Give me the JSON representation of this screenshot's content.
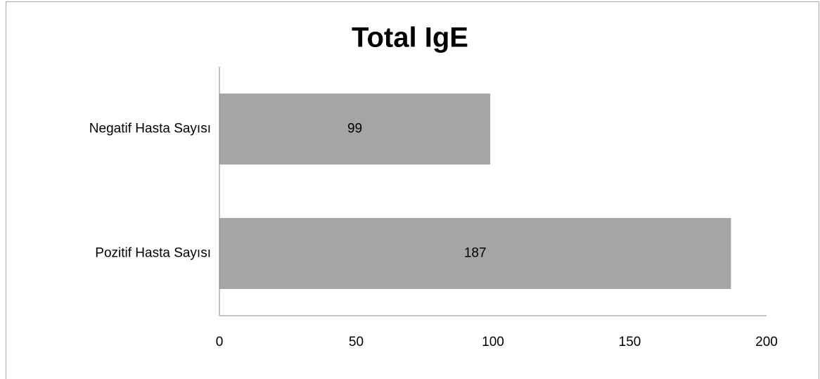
{
  "chart_data": {
    "type": "bar",
    "orientation": "horizontal",
    "title": "Total IgE",
    "categories": [
      "Negatif Hasta Sayısı",
      "Pozitif Hasta Sayısı"
    ],
    "values": [
      99,
      187
    ],
    "color": "#a5a5a5",
    "xlim": [
      0,
      200
    ],
    "xticks": [
      0,
      50,
      100,
      150,
      200
    ],
    "grid": false,
    "data_labels": true
  }
}
